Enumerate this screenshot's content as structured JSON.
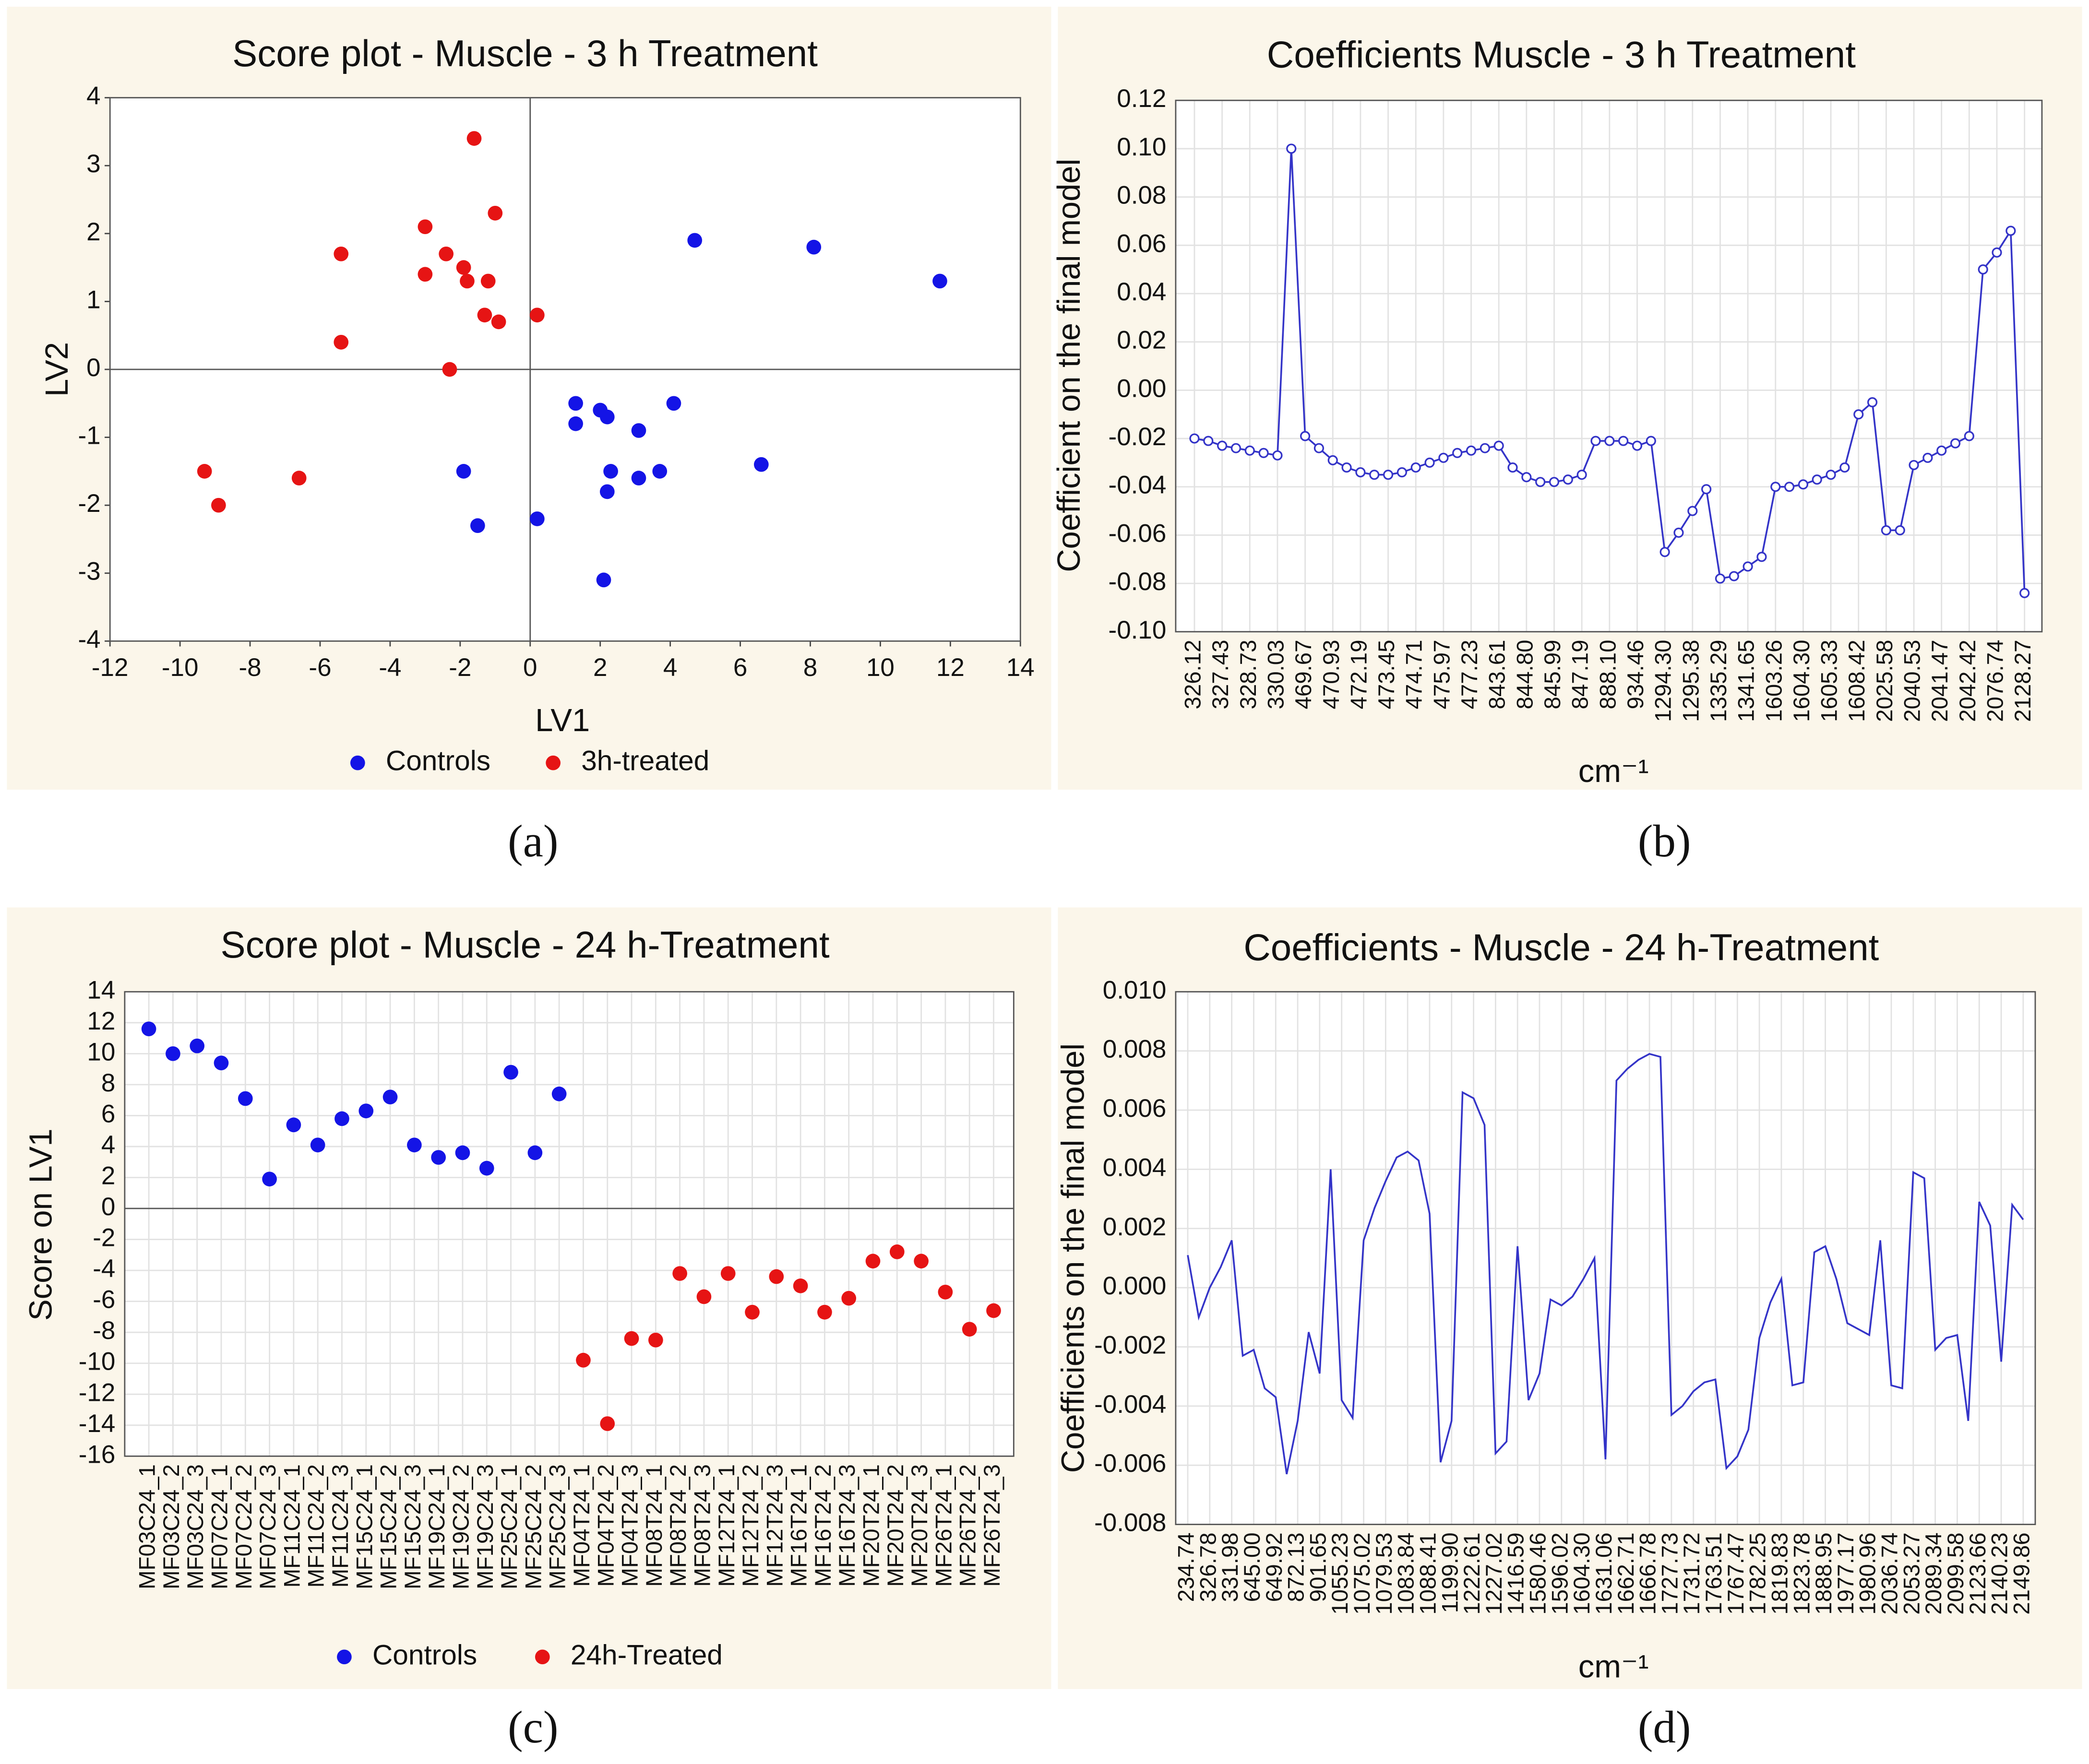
{
  "chart_data": [
    {
      "type": "scatter",
      "title": "Score plot - Muscle - 3 h Treatment",
      "x_label": "LV1",
      "y_label": "LV2",
      "panel_label": "(a)",
      "xlim": [
        -12,
        14
      ],
      "xticks": [
        -12,
        -10,
        -8,
        -6,
        -4,
        -2,
        0,
        2,
        4,
        6,
        8,
        10,
        12,
        14
      ],
      "ylim": [
        -4,
        4
      ],
      "yticks": [
        -4,
        -3,
        -2,
        -1,
        0,
        1,
        2,
        3,
        4
      ],
      "grid": false,
      "zero_lines": true,
      "legend": "bottom",
      "series": [
        {
          "name": "Controls",
          "color": "#1414e6",
          "x": [
            4.7,
            8.1,
            11.7,
            1.3,
            1.3,
            2.0,
            2.2,
            4.1,
            3.1,
            2.3,
            3.7,
            3.1,
            2.2,
            6.6,
            -1.9,
            -1.5,
            0.2,
            2.1
          ],
          "values": [
            1.9,
            1.8,
            1.3,
            -0.5,
            -0.8,
            -0.6,
            -0.7,
            -0.5,
            -0.9,
            -1.5,
            -1.5,
            -1.6,
            -1.8,
            -1.4,
            -1.5,
            -2.3,
            -2.2,
            -3.1
          ]
        },
        {
          "name": "3h-treated",
          "color": "#e61414",
          "x": [
            -1.6,
            -3.0,
            -1.0,
            -5.4,
            -2.4,
            -3.0,
            -1.9,
            -1.8,
            -1.2,
            -1.3,
            -0.9,
            0.2,
            -5.4,
            -2.3,
            -9.3,
            -8.9,
            -6.6
          ],
          "values": [
            3.4,
            2.1,
            2.3,
            1.7,
            1.7,
            1.4,
            1.5,
            1.3,
            1.3,
            0.8,
            0.7,
            0.8,
            0.4,
            0.0,
            -1.5,
            -2.0,
            -1.6
          ]
        }
      ]
    },
    {
      "type": "line",
      "title": "Coefficients Muscle - 3 h Treatment",
      "x_label": "cm⁻¹",
      "y_label": "Coefficient on the final model",
      "panel_label": "(b)",
      "markers": true,
      "grid": true,
      "color": "#3434c8",
      "ylim": [
        -0.1,
        0.12
      ],
      "yticks": [
        {
          "value": -0.1,
          "label": "-0.10"
        },
        -0.08,
        -0.06,
        -0.04,
        -0.02,
        {
          "value": 0,
          "label": "0.00"
        },
        0.02,
        0.04,
        0.06,
        0.08,
        {
          "value": 0.1,
          "label": "0.10"
        },
        0.12
      ],
      "categories": [
        "326.12",
        null,
        "327.43",
        null,
        "328.73",
        null,
        "330.03",
        null,
        "469.67",
        null,
        "470.93",
        null,
        "472.19",
        null,
        "473.45",
        null,
        "474.71",
        null,
        "475.97",
        null,
        "477.23",
        null,
        "843.61",
        null,
        "844.80",
        null,
        "845.99",
        null,
        "847.19",
        null,
        "888.10",
        null,
        "934.46",
        null,
        "1294.30",
        null,
        "1295.38",
        null,
        "1335.29",
        null,
        "1341.65",
        null,
        "1603.26",
        null,
        "1604.30",
        null,
        "1605.33",
        null,
        "1608.42",
        null,
        "2025.58",
        null,
        "2040.53",
        null,
        "2041.47",
        null,
        "2042.42",
        null,
        "2076.74",
        null,
        "2128.27"
      ],
      "values": [
        -0.02,
        -0.021,
        -0.023,
        -0.024,
        -0.025,
        -0.026,
        -0.027,
        0.1,
        -0.019,
        -0.024,
        -0.029,
        -0.032,
        -0.034,
        -0.035,
        -0.035,
        -0.034,
        -0.032,
        -0.03,
        -0.028,
        -0.026,
        -0.025,
        -0.024,
        -0.023,
        -0.032,
        -0.036,
        -0.038,
        -0.038,
        -0.037,
        -0.035,
        -0.021,
        -0.021,
        -0.021,
        -0.023,
        -0.021,
        -0.067,
        -0.059,
        -0.05,
        -0.041,
        -0.078,
        -0.077,
        -0.073,
        -0.069,
        -0.04,
        -0.04,
        -0.039,
        -0.037,
        -0.035,
        -0.032,
        -0.01,
        -0.005,
        -0.058,
        -0.058,
        -0.031,
        -0.028,
        -0.025,
        -0.022,
        -0.019,
        0.05,
        0.057,
        0.066,
        -0.084
      ]
    },
    {
      "type": "scatter",
      "title": "Score plot - Muscle - 24 h-Treatment",
      "y_label": "Score on LV1",
      "panel_label": "(c)",
      "grid": true,
      "zero_lines": true,
      "legend": "bottom",
      "ylim": [
        -16,
        14
      ],
      "yticks": [
        -16,
        -14,
        -12,
        -10,
        -8,
        -6,
        -4,
        -2,
        0,
        2,
        4,
        6,
        8,
        10,
        12,
        14
      ],
      "categories": [
        "MF03C24_1",
        "MF03C24_2",
        "MF03C24_3",
        "MF07C24_1",
        "MF07C24_2",
        "MF07C24_3",
        "MF11C24_1",
        "MF11C24_2",
        "MF11C24_3",
        "MF15C24_1",
        "MF15C24_2",
        "MF15C24_3",
        "MF19C24_1",
        "MF19C24_2",
        "MF19C24_3",
        "MF25C24_1",
        "MF25C24_2",
        "MF25C24_3",
        "MF04T24_1",
        "MF04T24_2",
        "MF04T24_3",
        "MF08T24_1",
        "MF08T24_2",
        "MF08T24_3",
        "MF12T24_1",
        "MF12T24_2",
        "MF12T24_3",
        "MF16T24_1",
        "MF16T24_2",
        "MF16T24_3",
        "MF20T24_1",
        "MF20T24_2",
        "MF20T24_3",
        "MF26T24_1",
        "MF26T24_2",
        "MF26T24_3"
      ],
      "series": [
        {
          "name": "Controls",
          "color": "#1414e6",
          "values": [
            11.6,
            10.0,
            10.5,
            9.4,
            7.1,
            1.9,
            5.4,
            4.1,
            5.8,
            6.3,
            7.2,
            4.1,
            3.3,
            3.6,
            2.6,
            8.8,
            3.6,
            7.4,
            null,
            null,
            null,
            null,
            null,
            null,
            null,
            null,
            null,
            null,
            null,
            null,
            null,
            null,
            null,
            null,
            null,
            null
          ]
        },
        {
          "name": "24h-Treated",
          "color": "#e61414",
          "values": [
            null,
            null,
            null,
            null,
            null,
            null,
            null,
            null,
            null,
            null,
            null,
            null,
            null,
            null,
            null,
            null,
            null,
            null,
            -9.8,
            -13.9,
            -8.4,
            -8.5,
            -4.2,
            -5.7,
            -4.2,
            -6.7,
            -4.4,
            -5.0,
            -6.7,
            -5.8,
            -3.4,
            -2.8,
            -3.4,
            -5.4,
            -7.8,
            -6.6
          ]
        }
      ]
    },
    {
      "type": "line",
      "title": "Coefficients - Muscle - 24 h-Treatment",
      "x_label": "cm⁻¹",
      "y_label": "Coefficients on the final model",
      "panel_label": "(d)",
      "markers": false,
      "grid": true,
      "color": "#3434c8",
      "ylim": [
        -0.008,
        0.01
      ],
      "yticks": [
        -0.008,
        -0.006,
        -0.004,
        -0.002,
        {
          "value": 0,
          "label": "0.000"
        },
        0.002,
        0.004,
        0.006,
        0.008,
        {
          "value": 0.01,
          "label": "0.010"
        }
      ],
      "categories": [
        "234.74",
        null,
        "326.78",
        null,
        "331.98",
        null,
        "645.00",
        null,
        "649.92",
        null,
        "872.13",
        null,
        "901.65",
        null,
        "1055.23",
        null,
        "1075.02",
        null,
        "1079.53",
        null,
        "1083.84",
        null,
        "1088.41",
        null,
        "1199.90",
        null,
        "1222.61",
        null,
        "1227.02",
        null,
        "1416.59",
        null,
        "1580.46",
        null,
        "1596.02",
        null,
        "1604.30",
        null,
        "1631.06",
        null,
        "1662.71",
        null,
        "1666.78",
        null,
        "1727.73",
        null,
        "1731.72",
        null,
        "1763.51",
        null,
        "1767.47",
        null,
        "1782.25",
        null,
        "1819.83",
        null,
        "1823.78",
        null,
        "1888.95",
        null,
        "1977.17",
        null,
        "1980.96",
        null,
        "2036.74",
        null,
        "2053.27",
        null,
        "2089.34",
        null,
        "2099.58",
        null,
        "2123.66",
        null,
        "2140.23",
        null,
        "2149.86"
      ],
      "values": [
        0.0011,
        -0.001,
        0.0,
        0.0007,
        0.0016,
        -0.0023,
        -0.0021,
        -0.0034,
        -0.0037,
        -0.0063,
        -0.0045,
        -0.0015,
        -0.0029,
        0.004,
        -0.0038,
        -0.0044,
        0.0016,
        0.0027,
        0.0036,
        0.0044,
        0.0046,
        0.0043,
        0.0025,
        -0.0059,
        -0.0045,
        0.0066,
        0.0064,
        0.0055,
        -0.0056,
        -0.0052,
        0.0014,
        -0.0038,
        -0.0029,
        -0.0004,
        -0.0006,
        -0.0003,
        0.0003,
        0.001,
        -0.0058,
        0.007,
        0.0074,
        0.0077,
        0.0079,
        0.0078,
        -0.0043,
        -0.004,
        -0.0035,
        -0.0032,
        -0.0031,
        -0.0061,
        -0.0057,
        -0.0048,
        -0.0017,
        -0.0005,
        0.0003,
        -0.0033,
        -0.0032,
        0.0012,
        0.0014,
        0.0003,
        -0.0012,
        -0.0014,
        -0.0016,
        0.0016,
        -0.0033,
        -0.0034,
        0.0039,
        0.0037,
        -0.0021,
        -0.0017,
        -0.0016,
        -0.0045,
        0.0029,
        0.0021,
        -0.0025,
        0.0028,
        0.0023
      ]
    }
  ]
}
